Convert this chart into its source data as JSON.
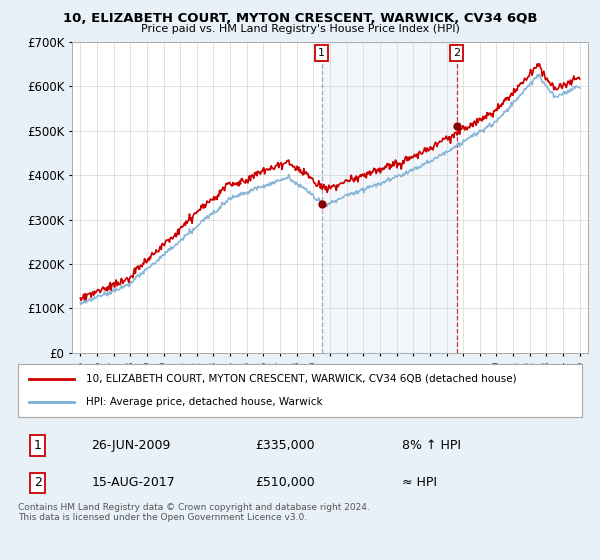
{
  "title": "10, ELIZABETH COURT, MYTON CRESCENT, WARWICK, CV34 6QB",
  "subtitle": "Price paid vs. HM Land Registry's House Price Index (HPI)",
  "legend_line1": "10, ELIZABETH COURT, MYTON CRESCENT, WARWICK, CV34 6QB (detached house)",
  "legend_line2": "HPI: Average price, detached house, Warwick",
  "annotation1_label": "1",
  "annotation1_date": "26-JUN-2009",
  "annotation1_price": "£335,000",
  "annotation1_note": "8% ↑ HPI",
  "annotation2_label": "2",
  "annotation2_date": "15-AUG-2017",
  "annotation2_price": "£510,000",
  "annotation2_note": "≈ HPI",
  "footer": "Contains HM Land Registry data © Crown copyright and database right 2024.\nThis data is licensed under the Open Government Licence v3.0.",
  "sale1_x": 2009.49,
  "sale1_y": 335000,
  "sale2_x": 2017.62,
  "sale2_y": 510000,
  "ylim": [
    0,
    700000
  ],
  "xlim_start": 1994.5,
  "xlim_end": 2025.5,
  "hpi_color": "#7bafd4",
  "price_color": "#cc0000",
  "background_color": "#e8f0f8",
  "plot_bg_color": "#ffffff",
  "grid_color": "#cccccc",
  "shade_color": "#ddeaf7",
  "vline1_color": "#999999",
  "vline2_color": "#cc0000"
}
